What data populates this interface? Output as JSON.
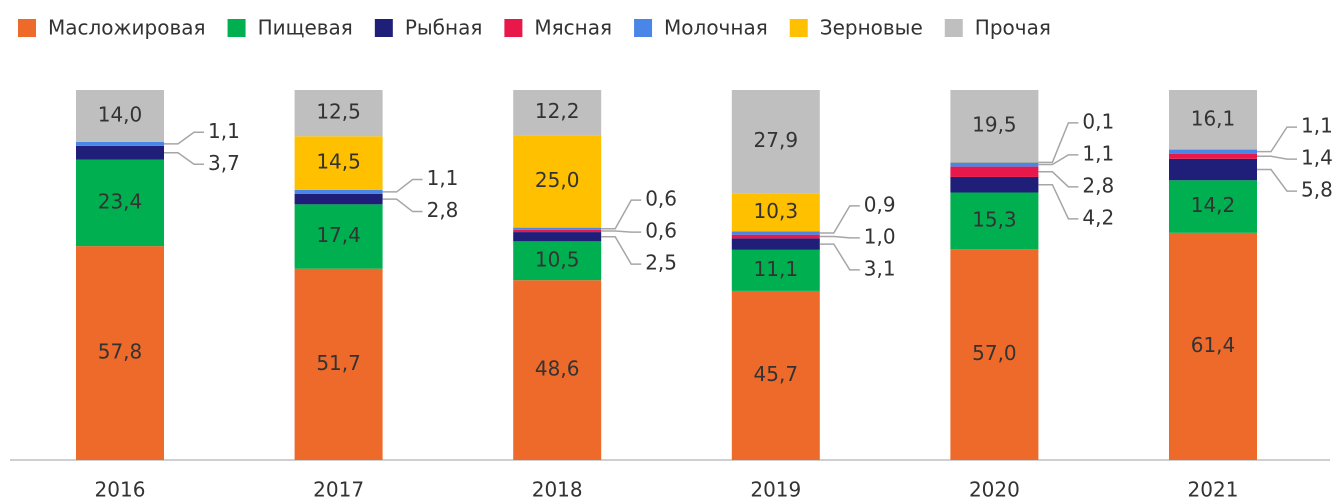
{
  "chart_data": {
    "type": "stacked_bar",
    "categories": [
      "2016",
      "2017",
      "2018",
      "2019",
      "2020",
      "2021"
    ],
    "ylim": [
      0,
      100
    ],
    "series": [
      {
        "name": "Масложировая",
        "color": "#ee6a2b",
        "values": [
          57.8,
          51.7,
          48.6,
          45.7,
          57.0,
          61.4
        ],
        "value_labels": [
          "57,8",
          "51,7",
          "48,6",
          "45,7",
          "57,0",
          "61,4"
        ]
      },
      {
        "name": "Пищевая",
        "color": "#00b050",
        "values": [
          23.4,
          17.4,
          10.5,
          11.1,
          15.3,
          14.2
        ],
        "value_labels": [
          "23,4",
          "17,4",
          "10,5",
          "11,1",
          "15,3",
          "14,2"
        ]
      },
      {
        "name": "Рыбная",
        "color": "#1f1f7a",
        "values": [
          3.7,
          2.8,
          2.5,
          3.1,
          4.2,
          5.8
        ],
        "value_labels": [
          "3,7",
          "2,8",
          "2,5",
          "3,1",
          "4,2",
          "5,8"
        ]
      },
      {
        "name": "Мясная",
        "color": "#e8194a",
        "values": [
          null,
          null,
          0.6,
          1.0,
          2.8,
          1.4
        ],
        "value_labels": [
          null,
          null,
          "0,6",
          "1,0",
          "2,8",
          "1,4"
        ]
      },
      {
        "name": "Молочная",
        "color": "#4a86e8",
        "values": [
          1.1,
          1.1,
          0.6,
          0.9,
          1.1,
          1.1
        ],
        "value_labels": [
          "1,1",
          "1,1",
          "0,6",
          "0,9",
          "1,1",
          "1,1"
        ]
      },
      {
        "name": "Зерновые",
        "color": "#ffc000",
        "values": [
          null,
          14.5,
          25.0,
          10.3,
          0.1,
          null
        ],
        "value_labels": [
          null,
          "14,5",
          "25,0",
          "10,3",
          "0,1",
          null
        ]
      },
      {
        "name": "Прочая",
        "color": "#bfbfbf",
        "values": [
          14.0,
          12.5,
          12.2,
          27.9,
          19.5,
          16.1
        ],
        "value_labels": [
          "14,0",
          "12,5",
          "12,2",
          "27,9",
          "19,5",
          "16,1"
        ]
      }
    ]
  }
}
